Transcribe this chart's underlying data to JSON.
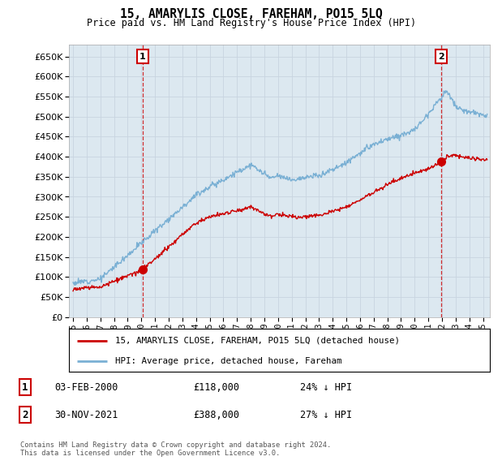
{
  "title": "15, AMARYLIS CLOSE, FAREHAM, PO15 5LQ",
  "subtitle": "Price paid vs. HM Land Registry's House Price Index (HPI)",
  "background_color": "#ffffff",
  "grid_color": "#c8d4e0",
  "plot_bg_color": "#dce8f0",
  "ylim": [
    0,
    680000
  ],
  "yticks": [
    0,
    50000,
    100000,
    150000,
    200000,
    250000,
    300000,
    350000,
    400000,
    450000,
    500000,
    550000,
    600000,
    650000
  ],
  "xlim_start": 1994.7,
  "xlim_end": 2025.5,
  "xtick_labels": [
    "1995",
    "1996",
    "1997",
    "1998",
    "1999",
    "2000",
    "2001",
    "2002",
    "2003",
    "2004",
    "2005",
    "2006",
    "2007",
    "2008",
    "2009",
    "2010",
    "2011",
    "2012",
    "2013",
    "2014",
    "2015",
    "2016",
    "2017",
    "2018",
    "2019",
    "2020",
    "2021",
    "2022",
    "2023",
    "2024",
    "2025"
  ],
  "marker1_x": 2000.08,
  "marker1_y": 118000,
  "marker1_label": "1",
  "marker1_date": "03-FEB-2000",
  "marker1_price": "£118,000",
  "marker1_hpi": "24% ↓ HPI",
  "marker2_x": 2021.92,
  "marker2_y": 388000,
  "marker2_label": "2",
  "marker2_date": "30-NOV-2021",
  "marker2_price": "£388,000",
  "marker2_hpi": "27% ↓ HPI",
  "sale_color": "#cc0000",
  "hpi_color": "#7ab0d4",
  "vline_color": "#cc0000",
  "legend_label_sale": "15, AMARYLIS CLOSE, FAREHAM, PO15 5LQ (detached house)",
  "legend_label_hpi": "HPI: Average price, detached house, Fareham",
  "footnote": "Contains HM Land Registry data © Crown copyright and database right 2024.\nThis data is licensed under the Open Government Licence v3.0."
}
